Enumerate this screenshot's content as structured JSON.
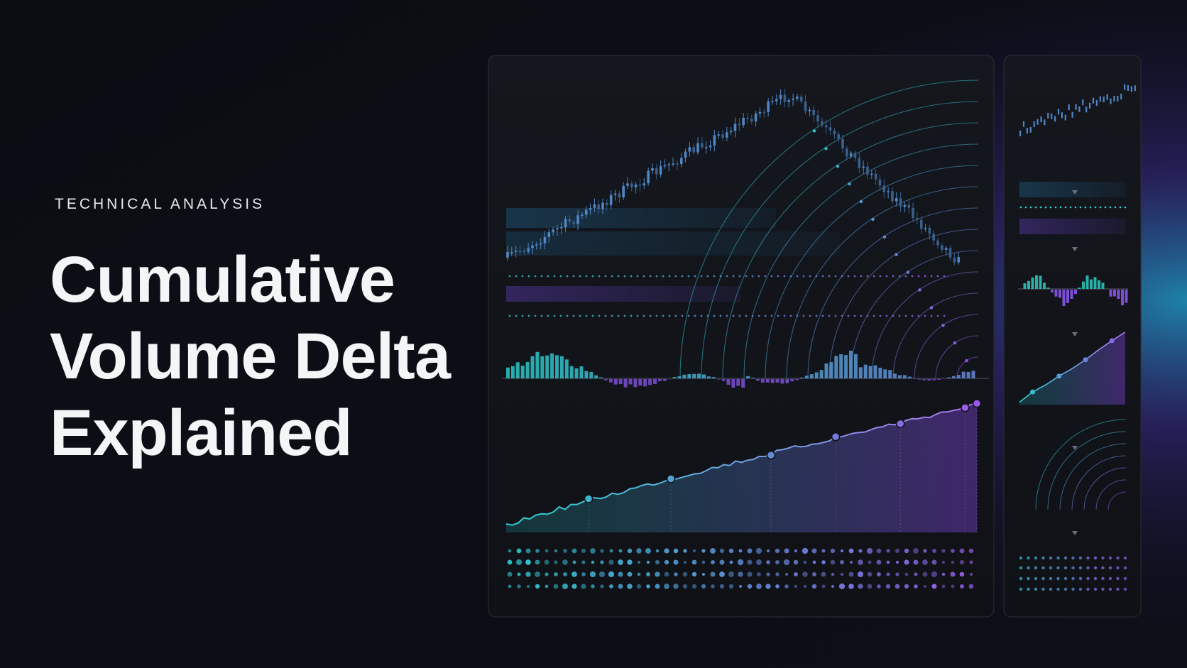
{
  "eyebrow": "TECHNICAL ANALYSIS",
  "title": {
    "lines": [
      "Cumulative",
      "Volume Delta",
      "Explained"
    ]
  }
}
